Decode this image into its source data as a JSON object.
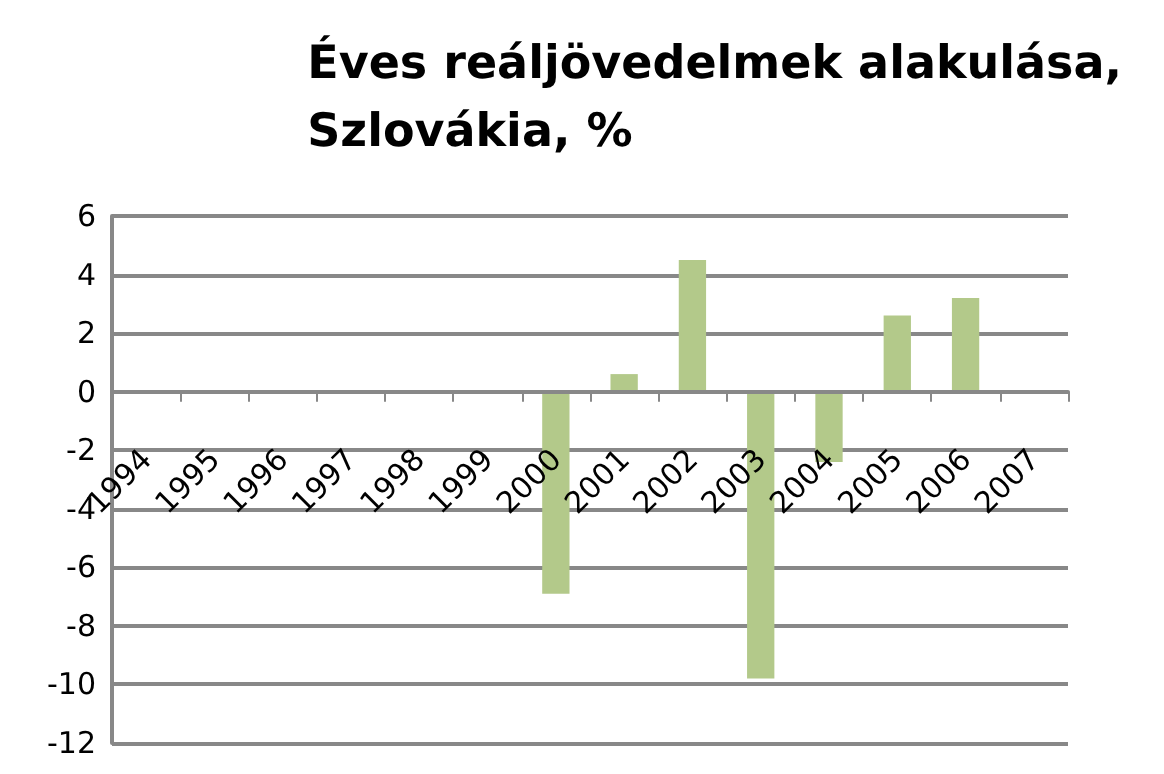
{
  "chart_data": {
    "type": "bar",
    "title": "Éves reáljövedelmek alakulása,\nSzlovákia, %",
    "categories": [
      "1994",
      "1995",
      "1996",
      "1997",
      "1998",
      "1999",
      "2000",
      "2001",
      "2002",
      "2003",
      "2004",
      "2005",
      "2006",
      "2007"
    ],
    "values": [
      null,
      null,
      null,
      null,
      null,
      null,
      -6.9,
      0.6,
      4.5,
      -9.8,
      -2.4,
      2.6,
      3.2,
      null
    ],
    "color": "#b3c98a",
    "ylim": [
      -12,
      6
    ],
    "yticks": [
      -12,
      -10,
      -8,
      -6,
      -4,
      -2,
      0,
      2,
      4,
      6
    ],
    "grid": "y"
  }
}
